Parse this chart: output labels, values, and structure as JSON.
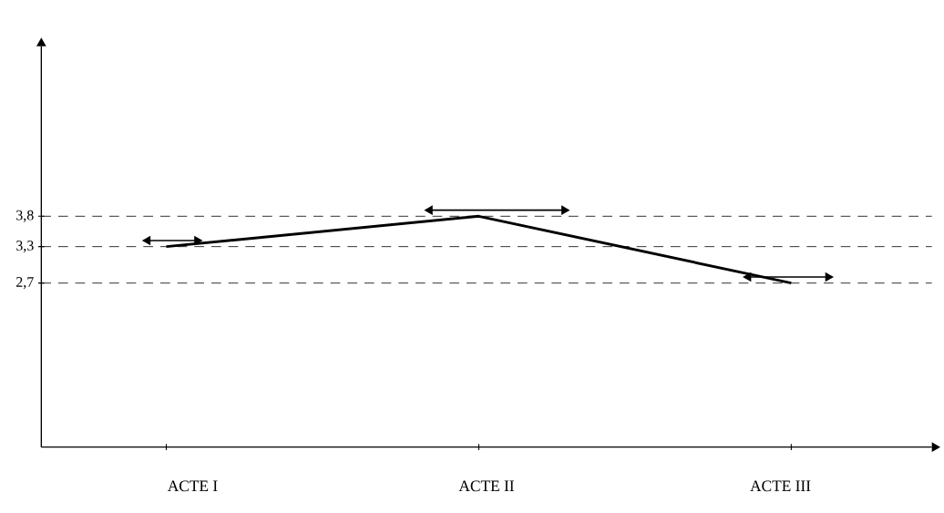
{
  "chart_data": {
    "type": "line",
    "categories": [
      null,
      null,
      null
    ],
    "values": [
      3.3,
      3.8,
      2.7
    ],
    "color": "#000000",
    "marker": "none",
    "line_style": "solid",
    "ylim": [
      0,
      6.6
    ],
    "yticks": [
      {
        "value": 2.7,
        "label": "2,7"
      },
      {
        "value": 3.3,
        "label": "3,3"
      },
      {
        "value": 3.8,
        "label": "3,8"
      }
    ],
    "annotations": [
      "ACTE I",
      "ACTE II",
      "ACTE III"
    ],
    "ref_lines": [
      {
        "axis": "y",
        "value": 3.8,
        "line_style": "dashed"
      },
      {
        "axis": "y",
        "value": 3.3,
        "line_style": "dashed"
      },
      {
        "axis": "y",
        "value": 2.7,
        "line_style": "dashed"
      }
    ]
  }
}
